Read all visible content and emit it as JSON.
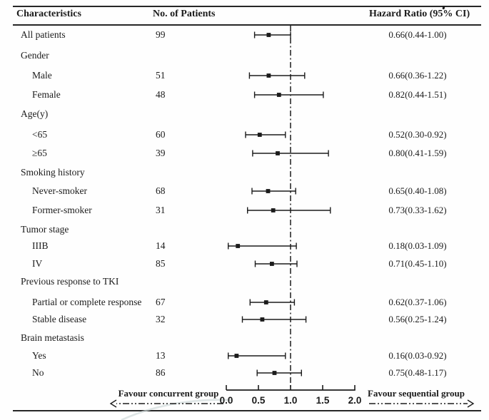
{
  "table": {
    "headers": {
      "characteristics": "Characteristics",
      "patients": "No. of Patients",
      "hazard": "Hazard Ratio (95% CI)"
    }
  },
  "footer": {
    "favour_left": "Favour concurrent group",
    "favour_right": "Favour sequential group"
  },
  "chart_data": {
    "type": "forest",
    "title": "Subgroup hazard ratio forest plot",
    "columns": [
      "Characteristics",
      "No. of Patients",
      "Hazard Ratio (95% CI)"
    ],
    "x_range": [
      0.0,
      2.0
    ],
    "x_ticks": [
      0.0,
      0.5,
      1.0,
      1.5,
      2.0
    ],
    "x_tick_labels": [
      "0.0",
      "0.5",
      "1.0",
      "1.5",
      "2.0"
    ],
    "reference_line": 1.0,
    "legend_left": "Favour concurrent group",
    "legend_right": "Favour sequential group",
    "rows": [
      {
        "label": "All patients",
        "indent": 0,
        "n": "99",
        "hr": 0.66,
        "lo": 0.44,
        "hi": 1.0,
        "ci": "0.66(0.44-1.00)"
      },
      {
        "label": "Gender",
        "indent": 0,
        "group": true
      },
      {
        "label": "Male",
        "indent": 1,
        "n": "51",
        "hr": 0.66,
        "lo": 0.36,
        "hi": 1.22,
        "ci": "0.66(0.36-1.22)"
      },
      {
        "label": "Female",
        "indent": 1,
        "n": "48",
        "hr": 0.82,
        "lo": 0.44,
        "hi": 1.51,
        "ci": "0.82(0.44-1.51)"
      },
      {
        "label": "Age(y)",
        "indent": 0,
        "group": true
      },
      {
        "label": "<65",
        "indent": 1,
        "n": "60",
        "hr": 0.52,
        "lo": 0.3,
        "hi": 0.92,
        "ci": "0.52(0.30-0.92)"
      },
      {
        "label": "≥65",
        "indent": 1,
        "n": "39",
        "hr": 0.8,
        "lo": 0.41,
        "hi": 1.59,
        "ci": "0.80(0.41-1.59)"
      },
      {
        "label": "Smoking history",
        "indent": 0,
        "group": true
      },
      {
        "label": "Never-smoker",
        "indent": 1,
        "n": "68",
        "hr": 0.65,
        "lo": 0.4,
        "hi": 1.08,
        "ci": "0.65(0.40-1.08)"
      },
      {
        "label": "Former-smoker",
        "indent": 1,
        "n": "31",
        "hr": 0.73,
        "lo": 0.33,
        "hi": 1.62,
        "ci": "0.73(0.33-1.62)"
      },
      {
        "label": "Tumor stage",
        "indent": 0,
        "group": true
      },
      {
        "label": "IIIB",
        "indent": 1,
        "n": "14",
        "hr": 0.18,
        "lo": 0.03,
        "hi": 1.09,
        "ci": "0.18(0.03-1.09)"
      },
      {
        "label": "IV",
        "indent": 1,
        "n": "85",
        "hr": 0.71,
        "lo": 0.45,
        "hi": 1.1,
        "ci": "0.71(0.45-1.10)"
      },
      {
        "label": "Previous response to TKI",
        "indent": 0,
        "group": true
      },
      {
        "label": "Partial or complete response",
        "indent": 1,
        "n": "67",
        "hr": 0.62,
        "lo": 0.37,
        "hi": 1.06,
        "ci": "0.62(0.37-1.06)"
      },
      {
        "label": "Stable disease",
        "indent": 1,
        "n": "32",
        "hr": 0.56,
        "lo": 0.25,
        "hi": 1.24,
        "ci": "0.56(0.25-1.24)"
      },
      {
        "label": "Brain metastasis",
        "indent": 0,
        "group": true
      },
      {
        "label": "Yes",
        "indent": 1,
        "n": "13",
        "hr": 0.16,
        "lo": 0.03,
        "hi": 0.92,
        "ci": "0.16(0.03-0.92)"
      },
      {
        "label": "No",
        "indent": 1,
        "n": "86",
        "hr": 0.75,
        "lo": 0.48,
        "hi": 1.17,
        "ci": "0.75(0.48-1.17)"
      }
    ]
  },
  "colors": {
    "ink": "#1b1b1b",
    "rule": "#262626",
    "watermark": "#ccd7d7"
  }
}
